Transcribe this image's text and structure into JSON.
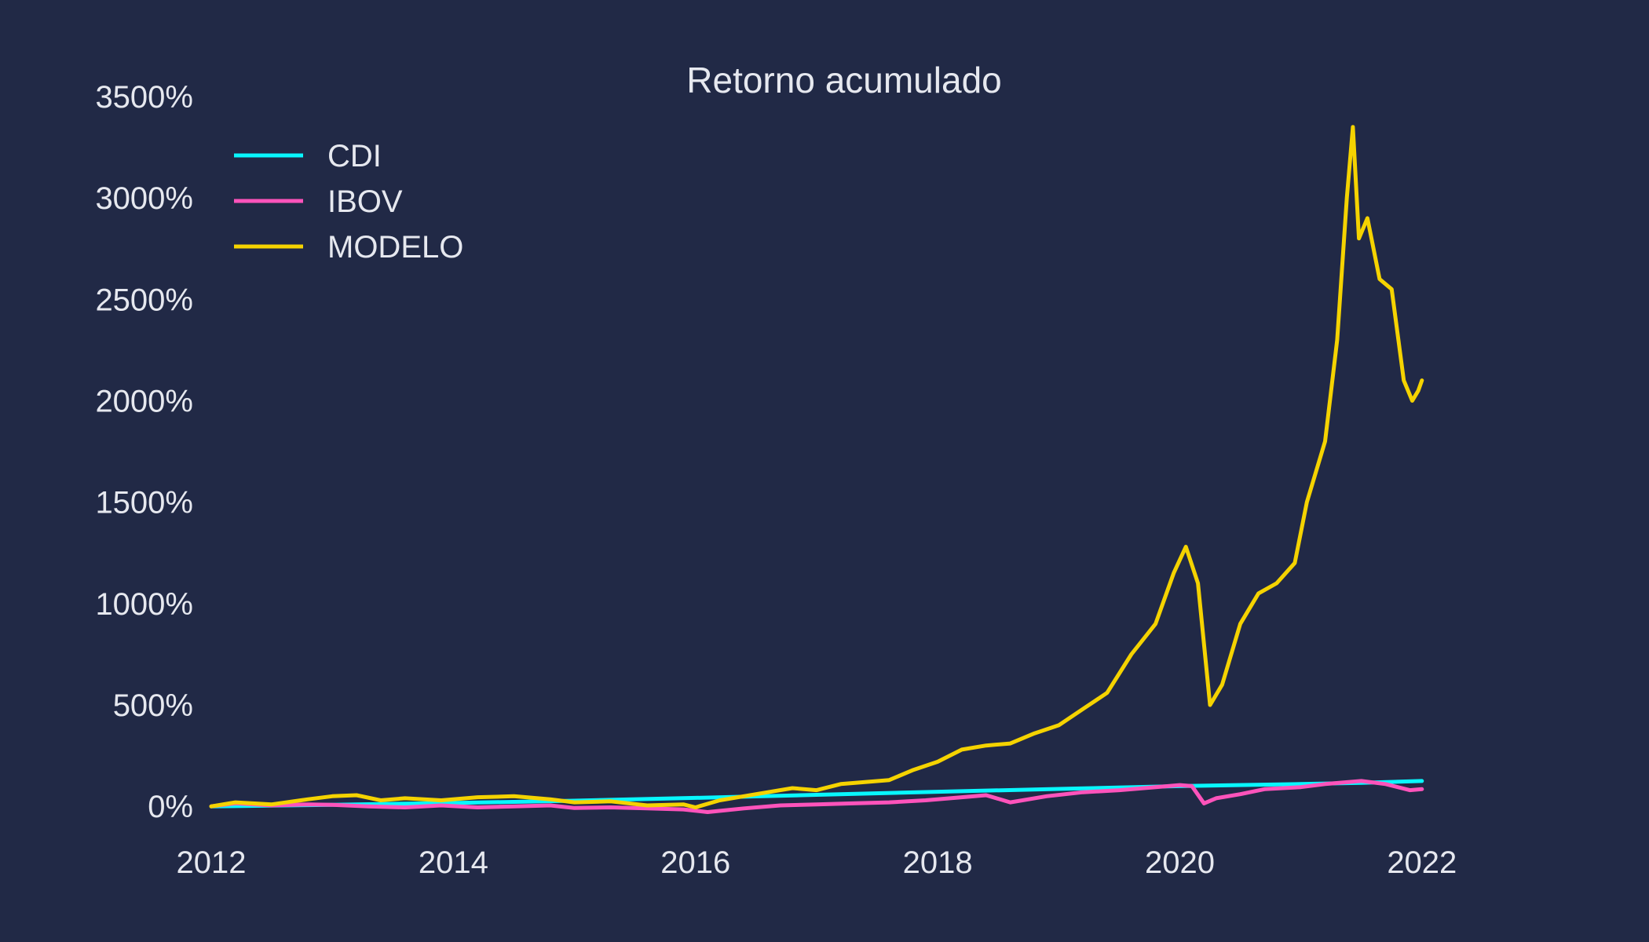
{
  "chart_data": {
    "type": "line",
    "title": "Retorno acumulado",
    "xlabel": "",
    "ylabel": "",
    "xlim": [
      2012.0,
      2023.0
    ],
    "ylim": [
      -150,
      3550
    ],
    "x_ticks": [
      2012,
      2014,
      2016,
      2018,
      2020,
      2022
    ],
    "x_tick_labels": [
      "2012",
      "2014",
      "2016",
      "2018",
      "2020",
      "2022"
    ],
    "y_ticks": [
      0,
      500,
      1000,
      1500,
      2000,
      2500,
      3000,
      3500
    ],
    "y_tick_labels": [
      "0%",
      "500%",
      "1000%",
      "1500%",
      "2000%",
      "2500%",
      "3000%",
      "3500%"
    ],
    "grid": false,
    "legend_position": "top-left",
    "series": [
      {
        "name": "CDI",
        "color": "#08F7FE",
        "x": [
          2012.0,
          2013.0,
          2014.0,
          2015.0,
          2016.0,
          2017.0,
          2018.0,
          2019.0,
          2020.0,
          2021.0,
          2021.5,
          2022.0
        ],
        "y": [
          0,
          8,
          17,
          28,
          42,
          57,
          72,
          86,
          100,
          110,
          116,
          125
        ]
      },
      {
        "name": "IBOV",
        "color": "#FE53BB",
        "x": [
          2012.0,
          2012.2,
          2012.5,
          2012.8,
          2013.0,
          2013.3,
          2013.6,
          2013.9,
          2014.2,
          2014.5,
          2014.8,
          2015.0,
          2015.3,
          2015.6,
          2015.9,
          2016.1,
          2016.4,
          2016.7,
          2017.0,
          2017.3,
          2017.6,
          2017.9,
          2018.2,
          2018.4,
          2018.6,
          2018.9,
          2019.2,
          2019.5,
          2019.8,
          2020.0,
          2020.1,
          2020.2,
          2020.3,
          2020.5,
          2020.7,
          2021.0,
          2021.2,
          2021.5,
          2021.7,
          2021.9,
          2022.0
        ],
        "y": [
          0,
          15,
          5,
          10,
          8,
          0,
          -5,
          5,
          -5,
          0,
          5,
          -8,
          -5,
          -10,
          -15,
          -28,
          -10,
          5,
          10,
          15,
          20,
          30,
          45,
          55,
          20,
          50,
          70,
          80,
          95,
          105,
          100,
          15,
          40,
          60,
          85,
          95,
          110,
          125,
          110,
          80,
          85
        ]
      },
      {
        "name": "MODELO",
        "color": "#F5D300",
        "x": [
          2012.0,
          2012.2,
          2012.5,
          2012.8,
          2013.0,
          2013.2,
          2013.4,
          2013.6,
          2013.9,
          2014.2,
          2014.5,
          2014.8,
          2015.0,
          2015.3,
          2015.6,
          2015.9,
          2016.0,
          2016.2,
          2016.5,
          2016.8,
          2017.0,
          2017.2,
          2017.4,
          2017.6,
          2017.8,
          2018.0,
          2018.2,
          2018.4,
          2018.6,
          2018.8,
          2019.0,
          2019.2,
          2019.4,
          2019.6,
          2019.8,
          2019.95,
          2020.05,
          2020.15,
          2020.25,
          2020.35,
          2020.5,
          2020.65,
          2020.8,
          2020.95,
          2021.05,
          2021.2,
          2021.3,
          2021.38,
          2021.43,
          2021.48,
          2021.55,
          2021.65,
          2021.75,
          2021.85,
          2021.92,
          2021.97,
          2022.0
        ],
        "y": [
          0,
          20,
          10,
          35,
          50,
          55,
          30,
          40,
          30,
          45,
          50,
          35,
          20,
          25,
          5,
          10,
          -5,
          30,
          60,
          90,
          80,
          110,
          120,
          130,
          180,
          220,
          280,
          300,
          310,
          360,
          400,
          480,
          560,
          750,
          900,
          1150,
          1280,
          1100,
          500,
          600,
          900,
          1050,
          1100,
          1200,
          1500,
          1800,
          2300,
          3000,
          3350,
          2800,
          2900,
          2600,
          2550,
          2100,
          2000,
          2050,
          2100
        ]
      }
    ]
  }
}
